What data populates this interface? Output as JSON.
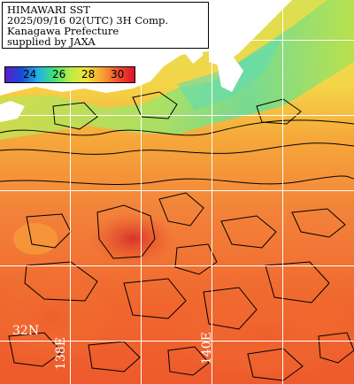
{
  "info": {
    "line1": "HIMAWARI SST",
    "line2": "2025/09/16 02(UTC) 3H Comp.",
    "line3": "Kanagawa Prefecture",
    "line4": "supplied by JAXA"
  },
  "colorbar": {
    "ticks": [
      "24",
      "26",
      "28",
      "30"
    ],
    "colors": [
      "#5a1ec8",
      "#1a4ad8",
      "#22b0e8",
      "#3ee07a",
      "#b8ec44",
      "#f2e23a",
      "#f6a232",
      "#f0502c",
      "#e0102a"
    ]
  },
  "grid_labels": {
    "lat": "32N",
    "lon1": "138E",
    "lon2": "140E"
  },
  "palette": {
    "land": "#ffffff",
    "warm": "#f07a2e",
    "hot": "#e84a2a",
    "cool": "#f2c24a",
    "coastal": "#86e07a"
  }
}
